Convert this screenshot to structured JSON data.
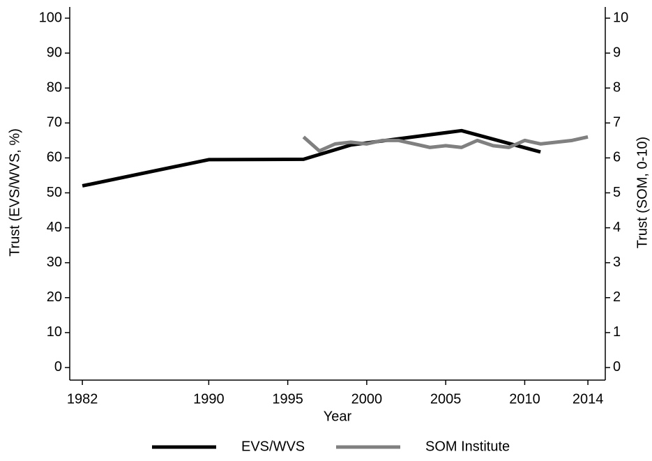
{
  "chart_data": {
    "type": "line",
    "x_label": "Year",
    "y_label": "Trust (EVS/WVS, %)",
    "y2_label": "Trust (SOM, 0-10)",
    "xlim": [
      1981.2,
      2015.1
    ],
    "xticks": [
      1982,
      1990,
      1995,
      2000,
      2005,
      2010,
      2014
    ],
    "ylim": [
      -3.6,
      103.2
    ],
    "yticks": [
      0,
      10,
      20,
      30,
      40,
      50,
      60,
      70,
      80,
      90,
      100
    ],
    "y2lim": [
      -0.36,
      10.32
    ],
    "y2ticks": [
      0,
      1,
      2,
      3,
      4,
      5,
      6,
      7,
      8,
      9,
      10
    ],
    "legend": "bottom",
    "series": [
      {
        "name": "EVS/WVS",
        "color": "#000000",
        "x": [
          1982,
          1990,
          1996,
          1999,
          2006,
          2011
        ],
        "values": [
          52,
          59.5,
          59.6,
          63.7,
          67.8,
          61.7
        ]
      },
      {
        "name": "SOM Institute",
        "color": "#808080",
        "axis": "y2",
        "x": [
          1996,
          1997,
          1998,
          1999,
          2000,
          2001,
          2002,
          2003,
          2004,
          2005,
          2006,
          2007,
          2008,
          2009,
          2010,
          2011,
          2012,
          2013,
          2014
        ],
        "values": [
          6.6,
          6.2,
          6.4,
          6.45,
          6.4,
          6.5,
          6.5,
          6.4,
          6.3,
          6.35,
          6.3,
          6.5,
          6.35,
          6.3,
          6.5,
          6.4,
          6.45,
          6.5,
          6.6
        ]
      }
    ]
  }
}
